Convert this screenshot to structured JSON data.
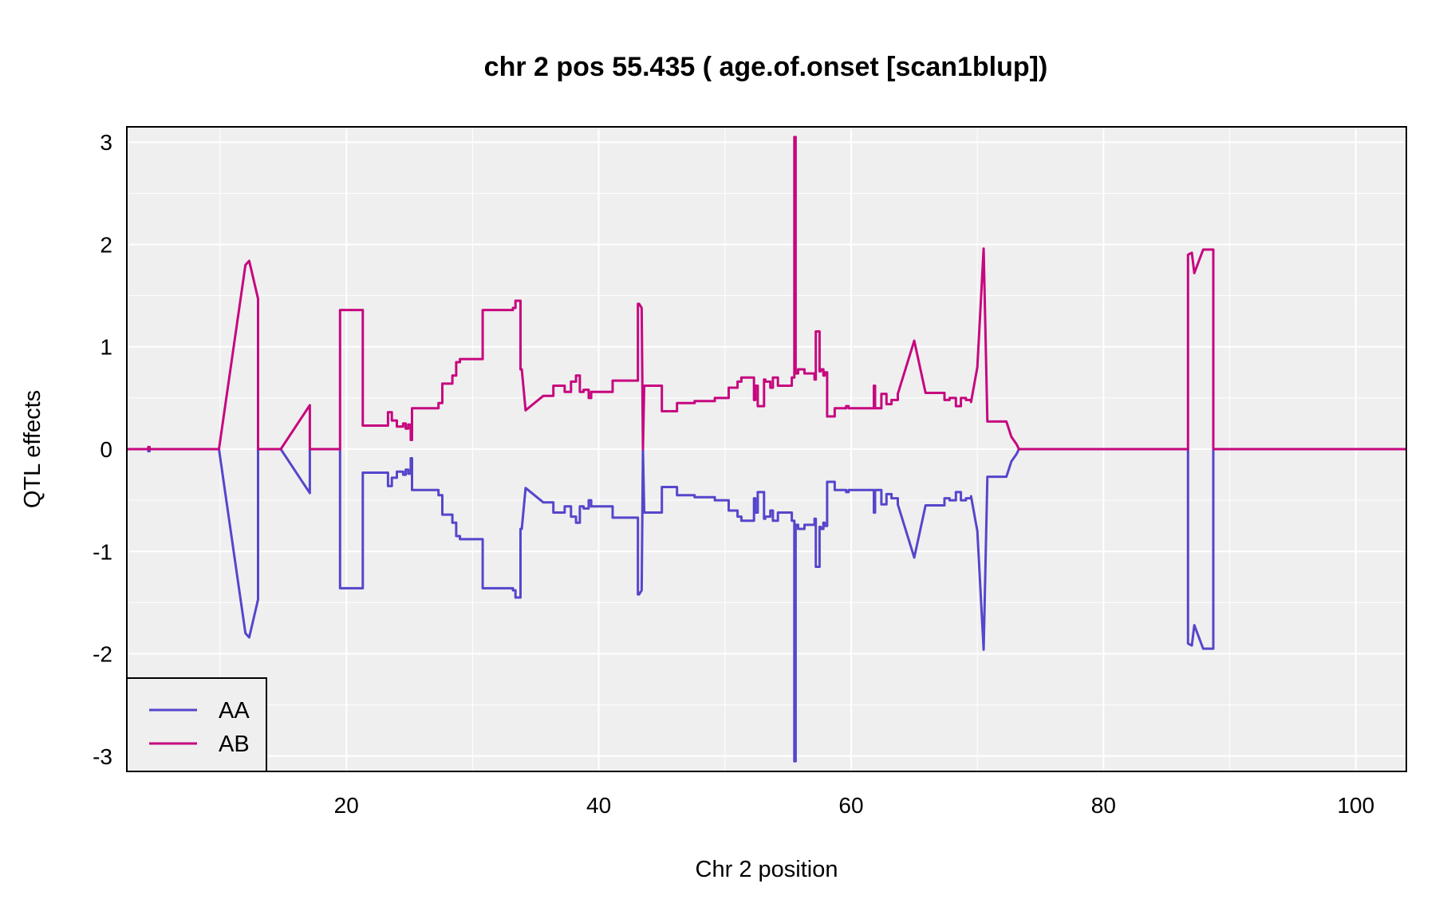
{
  "chart_data": {
    "type": "line",
    "title": "chr 2 pos 55.435 ( age.of.onset  [scan1blup])",
    "xlabel": "Chr 2 position",
    "ylabel": "QTL effects",
    "xlim": [
      2.6,
      104
    ],
    "ylim": [
      -3.15,
      3.15
    ],
    "xticks": [
      20,
      40,
      60,
      80,
      100
    ],
    "yticks": [
      -3,
      -2,
      -1,
      0,
      1,
      2,
      3
    ],
    "grid": true,
    "legend_position": "bottom-left",
    "colors": {
      "AA": "#5546CB",
      "AB": "#C6077F",
      "background": "#EFEFEF",
      "grid": "#FFFFFF"
    },
    "legend": [
      {
        "name": "AA",
        "color": "#5546CB"
      },
      {
        "name": "AB",
        "color": "#C6077F"
      }
    ],
    "x": [
      2.6,
      4.3,
      4.3,
      4.4,
      4.4,
      9.9,
      12,
      12.3,
      13,
      13,
      14.8,
      17.1,
      17.1,
      19.5,
      19.5,
      19.8,
      21.3,
      21.3,
      22,
      22,
      23.3,
      23.3,
      23.6,
      23.6,
      24,
      24,
      24.5,
      24.5,
      24.7,
      24.7,
      24.9,
      24.9,
      25.1,
      25.1,
      25.2,
      25.2,
      27.3,
      27.3,
      27.6,
      27.6,
      28.4,
      28.4,
      28.7,
      28.7,
      29,
      29,
      29.4,
      29.4,
      30.8,
      30.8,
      33.2,
      33.2,
      33.4,
      33.4,
      33.8,
      33.8,
      33.9,
      33.9,
      34.2,
      35.6,
      36.4,
      36.4,
      37.3,
      37.3,
      37.8,
      37.8,
      38.2,
      38.2,
      38.5,
      38.5,
      38.8,
      38.8,
      39.2,
      39.2,
      39.4,
      39.4,
      41.1,
      41.1,
      42.9,
      42.9,
      43.1,
      43.1,
      43.2,
      43.4,
      43.5,
      43.6,
      43.9,
      43.9,
      45,
      45,
      46.2,
      46.2,
      47.6,
      47.6,
      49.2,
      49.2,
      50.3,
      50.3,
      51,
      51,
      51.3,
      51.3,
      52.3,
      52.3,
      52.4,
      52.4,
      52.6,
      52.6,
      53.1,
      53.1,
      53.2,
      53.2,
      53.6,
      53.6,
      53.8,
      53.8,
      54.2,
      54.2,
      55.3,
      55.3,
      55.5,
      55.5,
      55.6,
      55.6,
      55.8,
      55.8,
      56.3,
      56.3,
      57.1,
      57.1,
      57.2,
      57.2,
      57.5,
      57.5,
      57.6,
      57.6,
      57.8,
      57.8,
      57.9,
      57.9,
      58.1,
      58.1,
      58.7,
      58.7,
      59.6,
      59.6,
      59.8,
      59.8,
      61.8,
      61.8,
      61.9,
      61.9,
      62.4,
      62.4,
      62.8,
      62.8,
      63.2,
      63.2,
      63.7,
      63.7,
      65,
      65.9,
      67.4,
      67.4,
      67.8,
      67.8,
      68.3,
      68.3,
      68.7,
      68.7,
      69.1,
      69.1,
      69.5,
      69.5,
      70,
      70.5,
      70.5,
      70.8,
      70.8,
      72.3,
      72.3,
      72.7,
      72.7,
      73.1,
      73.1,
      73.3,
      73.3,
      86.7,
      86.7,
      87,
      87.2,
      87.9,
      88.7,
      88.7,
      104
    ],
    "series": [
      {
        "name": "AA",
        "values": [
          0,
          0,
          -0.02,
          -0.02,
          0,
          0,
          -1.8,
          -1.84,
          -1.47,
          0,
          0,
          -0.43,
          0,
          0,
          -1.36,
          -1.36,
          -1.36,
          -0.23,
          -0.23,
          -0.23,
          -0.23,
          -0.36,
          -0.36,
          -0.28,
          -0.28,
          -0.22,
          -0.22,
          -0.25,
          -0.25,
          -0.2,
          -0.2,
          -0.24,
          -0.24,
          -0.09,
          -0.09,
          -0.4,
          -0.4,
          -0.45,
          -0.45,
          -0.64,
          -0.64,
          -0.72,
          -0.72,
          -0.85,
          -0.85,
          -0.88,
          -0.88,
          -0.88,
          -0.88,
          -1.36,
          -1.36,
          -1.38,
          -1.38,
          -1.45,
          -1.45,
          -0.78,
          -0.78,
          -0.78,
          -0.38,
          -0.52,
          -0.52,
          -0.62,
          -0.62,
          -0.56,
          -0.56,
          -0.66,
          -0.66,
          -0.72,
          -0.72,
          -0.56,
          -0.56,
          -0.58,
          -0.58,
          -0.5,
          -0.5,
          -0.56,
          -0.56,
          -0.67,
          -0.67,
          -0.67,
          -0.67,
          -1.42,
          -1.42,
          -1.38,
          0,
          -0.62,
          -0.62,
          -0.62,
          -0.62,
          -0.37,
          -0.37,
          -0.45,
          -0.45,
          -0.47,
          -0.47,
          -0.5,
          -0.5,
          -0.6,
          -0.6,
          -0.66,
          -0.66,
          -0.7,
          -0.7,
          -0.48,
          -0.48,
          -0.62,
          -0.62,
          -0.42,
          -0.42,
          -0.68,
          -0.68,
          -0.66,
          -0.66,
          -0.6,
          -0.6,
          -0.7,
          -0.7,
          -0.62,
          -0.62,
          -0.7,
          -0.7,
          -3.05,
          -3.05,
          -0.74,
          -0.74,
          -0.78,
          -0.78,
          -0.74,
          -0.74,
          -0.68,
          -0.68,
          -1.15,
          -1.15,
          -0.76,
          -0.76,
          -0.78,
          -0.78,
          -0.72,
          -0.72,
          -0.75,
          -0.75,
          -0.32,
          -0.32,
          -0.4,
          -0.4,
          -0.42,
          -0.42,
          -0.4,
          -0.4,
          -0.62,
          -0.62,
          -0.4,
          -0.4,
          -0.54,
          -0.54,
          -0.44,
          -0.44,
          -0.48,
          -0.48,
          -0.54,
          -1.06,
          -0.55,
          -0.55,
          -0.48,
          -0.48,
          -0.5,
          -0.5,
          -0.42,
          -0.42,
          -0.5,
          -0.5,
          -0.48,
          -0.48,
          -0.46,
          -0.8,
          -1.96,
          -1.96,
          -0.27,
          -0.27,
          -0.27,
          -0.27,
          -0.12,
          -0.12,
          -0.05,
          -0.05,
          0,
          0,
          0,
          -1.9,
          -1.92,
          -1.72,
          -1.95,
          -1.95,
          0,
          0
        ]
      },
      {
        "name": "AB",
        "values": [
          0,
          0,
          0.02,
          0.02,
          0,
          0,
          1.8,
          1.84,
          1.47,
          0,
          0,
          0.43,
          0,
          0,
          1.36,
          1.36,
          1.36,
          0.23,
          0.23,
          0.23,
          0.23,
          0.36,
          0.36,
          0.28,
          0.28,
          0.22,
          0.22,
          0.25,
          0.25,
          0.2,
          0.2,
          0.24,
          0.24,
          0.09,
          0.09,
          0.4,
          0.4,
          0.45,
          0.45,
          0.64,
          0.64,
          0.72,
          0.72,
          0.85,
          0.85,
          0.88,
          0.88,
          0.88,
          0.88,
          1.36,
          1.36,
          1.38,
          1.38,
          1.45,
          1.45,
          0.78,
          0.78,
          0.78,
          0.38,
          0.52,
          0.52,
          0.62,
          0.62,
          0.56,
          0.56,
          0.66,
          0.66,
          0.72,
          0.72,
          0.56,
          0.56,
          0.58,
          0.58,
          0.5,
          0.5,
          0.56,
          0.56,
          0.67,
          0.67,
          0.67,
          0.67,
          1.42,
          1.42,
          1.38,
          0,
          0.62,
          0.62,
          0.62,
          0.62,
          0.37,
          0.37,
          0.45,
          0.45,
          0.47,
          0.47,
          0.5,
          0.5,
          0.6,
          0.6,
          0.66,
          0.66,
          0.7,
          0.7,
          0.48,
          0.48,
          0.62,
          0.62,
          0.42,
          0.42,
          0.68,
          0.68,
          0.66,
          0.66,
          0.6,
          0.6,
          0.7,
          0.7,
          0.62,
          0.62,
          0.7,
          0.7,
          3.05,
          3.05,
          0.74,
          0.74,
          0.78,
          0.78,
          0.74,
          0.74,
          0.68,
          0.68,
          1.15,
          1.15,
          0.76,
          0.76,
          0.78,
          0.78,
          0.72,
          0.72,
          0.75,
          0.75,
          0.32,
          0.32,
          0.4,
          0.4,
          0.42,
          0.42,
          0.4,
          0.4,
          0.62,
          0.62,
          0.4,
          0.4,
          0.54,
          0.54,
          0.44,
          0.44,
          0.48,
          0.48,
          0.54,
          1.06,
          0.55,
          0.55,
          0.48,
          0.48,
          0.5,
          0.5,
          0.42,
          0.42,
          0.5,
          0.5,
          0.48,
          0.48,
          0.46,
          0.8,
          1.96,
          1.96,
          0.27,
          0.27,
          0.27,
          0.27,
          0.12,
          0.12,
          0.05,
          0.05,
          0,
          0,
          0,
          1.9,
          1.92,
          1.72,
          1.95,
          1.95,
          0,
          0
        ]
      }
    ]
  }
}
